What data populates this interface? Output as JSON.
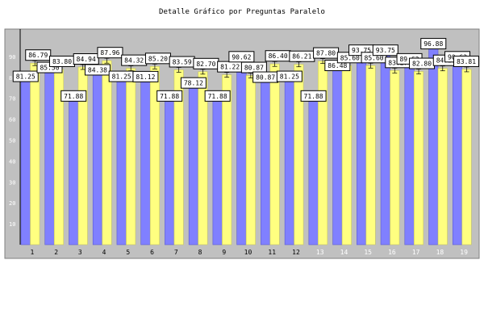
{
  "chart_data": {
    "type": "bar",
    "title": "Detalle Gráfico por Preguntas Paralelo",
    "xlabel": "",
    "ylabel": "",
    "ylim": [
      0,
      100
    ],
    "yticks": [
      10,
      20,
      30,
      40,
      50,
      60,
      70,
      80,
      90
    ],
    "categories": [
      "1",
      "2",
      "3",
      "4",
      "5",
      "6",
      "7",
      "8",
      "9",
      "10",
      "11",
      "12",
      "13",
      "14",
      "15",
      "16",
      "17",
      "18",
      "19"
    ],
    "series": [
      {
        "values": [
          81.25,
          85.5,
          71.88,
          84.38,
          81.25,
          81.12,
          71.88,
          78.12,
          71.88,
          90.62,
          80.87,
          81.25,
          71.88,
          86.48,
          93.75,
          93.75,
          89.62,
          96.88,
          90.62
        ]
      },
      {
        "values": [
          86.79,
          83.8,
          84.94,
          87.96,
          84.32,
          85.2,
          83.59,
          82.7,
          81.22,
          80.87,
          86.4,
          86.21,
          87.8,
          85.6,
          85.6,
          83.27,
          82.8,
          84.28,
          83.81
        ]
      }
    ],
    "data_labels": [
      [
        "81.25",
        "85.50",
        "71.88",
        "84.38",
        "81.25",
        "81.12",
        "71.88",
        "78.12",
        "71.88",
        "90.62",
        "80.87",
        "81.25",
        "71.88",
        "86.48",
        "93.75",
        "93.75",
        "89.62",
        "96.88",
        "90.62"
      ],
      [
        "86.79",
        "83.80",
        "84.94",
        "87.96",
        "84.32",
        "85.20",
        "83.59",
        "82.70",
        "81.22",
        "80.87",
        "86.40",
        "86.21",
        "87.80",
        "85.60",
        "85.60",
        "83.27",
        "82.80",
        "84.28",
        "83.81"
      ]
    ],
    "colors": {
      "series1": "#8080ff",
      "series2": "#ffff80",
      "plot_background": "#c0c0c0",
      "tick_label": "#000000",
      "tick_label_light": "#ffffff"
    },
    "light_tick_categories": [
      "13",
      "14",
      "15",
      "16",
      "17",
      "18",
      "19"
    ],
    "grid": false,
    "legend": "none"
  }
}
